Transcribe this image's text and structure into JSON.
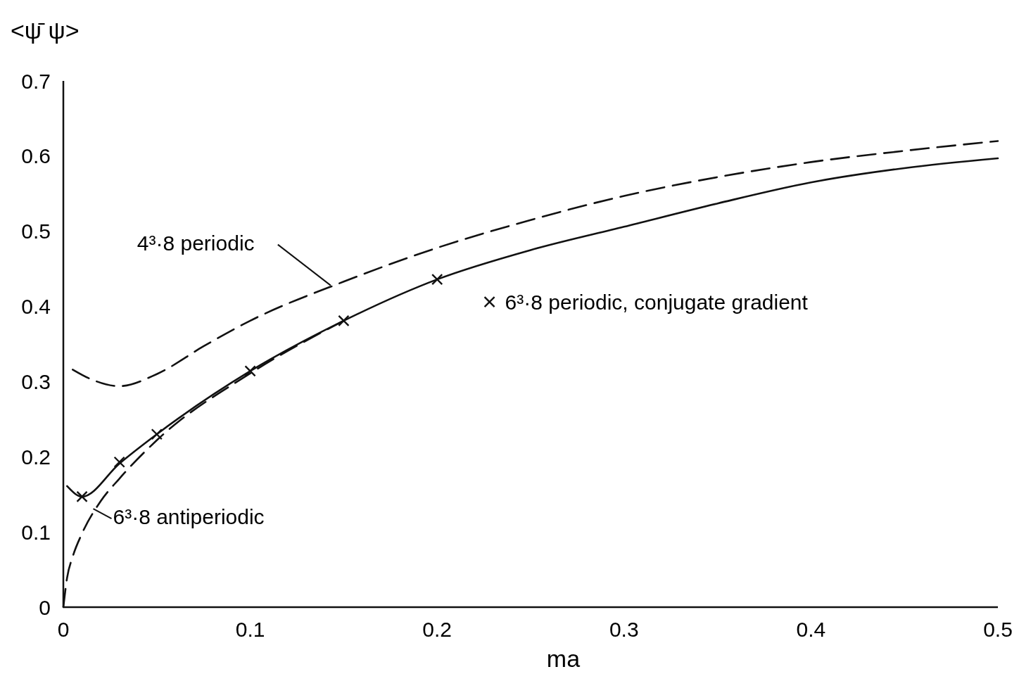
{
  "chart_data": {
    "type": "line",
    "xlabel": "ma",
    "ylabel": "<ψ̄ ψ>",
    "xlim": [
      0,
      0.5
    ],
    "ylim": [
      0,
      0.7
    ],
    "xticks": [
      0,
      0.1,
      0.2,
      0.3,
      0.4,
      0.5
    ],
    "yticks": [
      0,
      0.1,
      0.2,
      0.3,
      0.4,
      0.5,
      0.6,
      0.7
    ],
    "grid": false,
    "legend": "right",
    "series": [
      {
        "color": "#111111",
        "line_style": "dashed",
        "marker": "none",
        "x": [
          0.005,
          0.015,
          0.03,
          0.05,
          0.075,
          0.1,
          0.15,
          0.2,
          0.25,
          0.3,
          0.35,
          0.4,
          0.45,
          0.5
        ],
        "values": [
          0.316,
          0.303,
          0.294,
          0.31,
          0.347,
          0.381,
          0.433,
          0.478,
          0.515,
          0.547,
          0.572,
          0.592,
          0.607,
          0.62
        ]
      },
      {
        "color": "#111111",
        "line_style": "solid",
        "marker": "none",
        "x": [
          0.002,
          0.01,
          0.03,
          0.05,
          0.1,
          0.15,
          0.2,
          0.25,
          0.3,
          0.35,
          0.4,
          0.45,
          0.5
        ],
        "values": [
          0.161,
          0.147,
          0.191,
          0.23,
          0.314,
          0.381,
          0.436,
          0.475,
          0.506,
          0.537,
          0.565,
          0.584,
          0.597
        ]
      },
      {
        "color": "#111111",
        "line_style": "dashed",
        "marker": "none",
        "x": [
          0,
          0.002,
          0.005,
          0.01,
          0.02,
          0.03,
          0.05,
          0.1,
          0.15
        ],
        "values": [
          0,
          0.039,
          0.067,
          0.098,
          0.141,
          0.171,
          0.222,
          0.311,
          0.381
        ]
      },
      {
        "type": "scatter",
        "name": "6³·8 periodic, conjugate gradient",
        "color": "#111111",
        "marker": "cross",
        "x": [
          0.01,
          0.03,
          0.05,
          0.1,
          0.15,
          0.2
        ],
        "values": [
          0.147,
          0.193,
          0.23,
          0.314,
          0.381,
          0.436
        ]
      }
    ],
    "annotations": [
      {
        "text": "4³·8 periodic",
        "x": 0.143,
        "y": 0.428
      },
      {
        "text": "6³·8 antiperiodic",
        "x": 0.016,
        "y": 0.131
      }
    ]
  }
}
